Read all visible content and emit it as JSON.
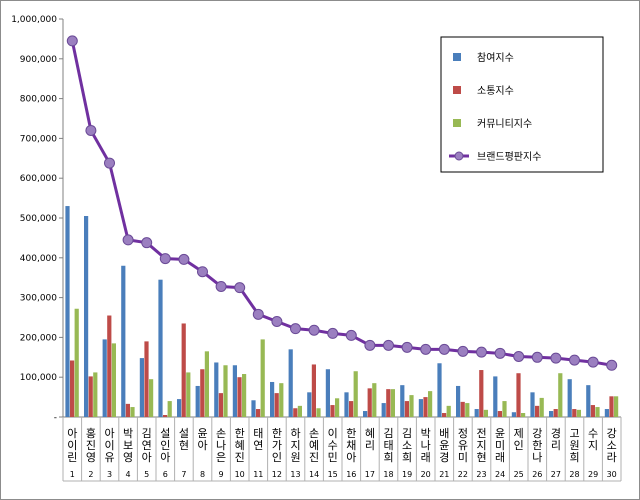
{
  "chart_data": {
    "type": "bar",
    "title": "",
    "xlabel": "",
    "ylabel": "",
    "ylim": [
      0,
      1000000
    ],
    "yticks": [
      0,
      100000,
      200000,
      300000,
      400000,
      500000,
      600000,
      700000,
      800000,
      900000,
      1000000
    ],
    "ytick_labels": [
      "-",
      "100,000",
      "200,000",
      "300,000",
      "400,000",
      "500,000",
      "600,000",
      "700,000",
      "800,000",
      "900,000",
      "1,000,000"
    ],
    "grid": false,
    "legend_position": "top-right",
    "categories": [
      "아이린",
      "홍진영",
      "아이유",
      "박보영",
      "김연아",
      "설인아",
      "설현",
      "윤아",
      "손나은",
      "한혜진",
      "태연",
      "한가인",
      "하지원",
      "손예진",
      "이수민",
      "한채아",
      "혜리",
      "김태희",
      "김소희",
      "박나래",
      "배윤경",
      "정유미",
      "전지현",
      "윤미래",
      "제인",
      "강한나",
      "경리",
      "고원희",
      "수지",
      "강소라"
    ],
    "ranks": [
      "1",
      "2",
      "3",
      "4",
      "5",
      "6",
      "7",
      "8",
      "9",
      "10",
      "11",
      "12",
      "13",
      "14",
      "15",
      "16",
      "17",
      "18",
      "19",
      "20",
      "21",
      "22",
      "23",
      "24",
      "25",
      "26",
      "27",
      "28",
      "29",
      "30"
    ],
    "series": [
      {
        "name": "참여지수",
        "type": "bar",
        "color": "#4a7ebb",
        "values": [
          530000,
          505000,
          195000,
          380000,
          148000,
          345000,
          45000,
          78000,
          137000,
          130000,
          42000,
          88000,
          170000,
          62000,
          120000,
          62000,
          15000,
          35000,
          80000,
          45000,
          135000,
          78000,
          20000,
          102000,
          12000,
          62000,
          15000,
          95000,
          80000,
          20000
        ]
      },
      {
        "name": "소통지수",
        "type": "bar",
        "color": "#be4b48",
        "values": [
          142000,
          102000,
          255000,
          33000,
          190000,
          5000,
          235000,
          120000,
          60000,
          100000,
          20000,
          60000,
          22000,
          132000,
          30000,
          40000,
          72000,
          70000,
          40000,
          50000,
          10000,
          38000,
          118000,
          15000,
          110000,
          28000,
          20000,
          20000,
          30000,
          52000
        ]
      },
      {
        "name": "커뮤니티지수",
        "type": "bar",
        "color": "#98b954",
        "values": [
          272000,
          112000,
          185000,
          25000,
          95000,
          40000,
          112000,
          165000,
          130000,
          108000,
          195000,
          85000,
          28000,
          22000,
          47000,
          115000,
          85000,
          70000,
          55000,
          65000,
          28000,
          35000,
          18000,
          40000,
          10000,
          48000,
          110000,
          18000,
          25000,
          52000
        ]
      },
      {
        "name": "브랜드평판지수",
        "type": "line",
        "color": "#7030a0",
        "values": [
          945000,
          720000,
          638000,
          445000,
          438000,
          398000,
          396000,
          365000,
          328000,
          325000,
          258000,
          240000,
          222000,
          218000,
          210000,
          205000,
          180000,
          180000,
          175000,
          170000,
          170000,
          165000,
          163000,
          160000,
          152000,
          150000,
          148000,
          143000,
          138000,
          130000
        ]
      }
    ]
  }
}
